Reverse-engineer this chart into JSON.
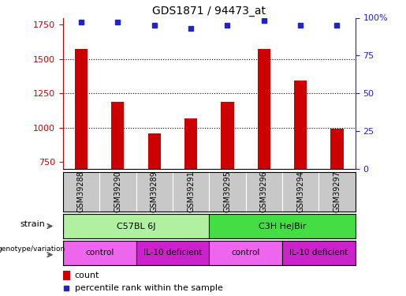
{
  "title": "GDS1871 / 94473_at",
  "samples": [
    "GSM39288",
    "GSM39290",
    "GSM39289",
    "GSM39291",
    "GSM39295",
    "GSM39296",
    "GSM39294",
    "GSM39297"
  ],
  "counts": [
    1575,
    1185,
    960,
    1065,
    1185,
    1575,
    1340,
    990
  ],
  "percentiles": [
    97,
    97,
    95,
    93,
    95,
    98,
    95,
    95
  ],
  "ylim_left": [
    700,
    1800
  ],
  "ylim_right": [
    0,
    100
  ],
  "yticks_left": [
    750,
    1000,
    1250,
    1500,
    1750
  ],
  "yticks_right": [
    0,
    25,
    50,
    75,
    100
  ],
  "grid_yticks": [
    1000,
    1250,
    1500
  ],
  "bar_color": "#cc0000",
  "dot_color": "#2222cc",
  "strain_labels": [
    {
      "label": "C57BL 6J",
      "start": 0,
      "end": 4,
      "color": "#b0f0a0"
    },
    {
      "label": "C3H HeJBir",
      "start": 4,
      "end": 8,
      "color": "#44dd44"
    }
  ],
  "genotype_labels": [
    {
      "label": "control",
      "start": 0,
      "end": 2,
      "color": "#ee66ee"
    },
    {
      "label": "IL-10 deficient",
      "start": 2,
      "end": 4,
      "color": "#cc22cc"
    },
    {
      "label": "control",
      "start": 4,
      "end": 6,
      "color": "#ee66ee"
    },
    {
      "label": "IL-10 deficient",
      "start": 6,
      "end": 8,
      "color": "#cc22cc"
    }
  ],
  "left_axis_color": "#cc0000",
  "right_axis_color": "#2222cc",
  "sample_box_color": "#c8c8c8",
  "fig_width": 5.15,
  "fig_height": 3.75,
  "fig_dpi": 100
}
